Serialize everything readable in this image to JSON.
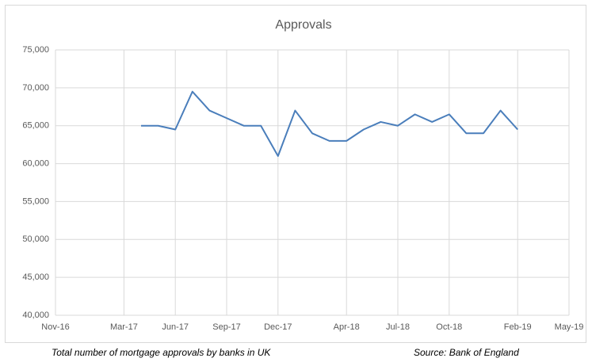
{
  "chart_data": {
    "type": "line",
    "title": "Approvals",
    "x": [
      "2017-04",
      "2017-05",
      "2017-06",
      "2017-07",
      "2017-08",
      "2017-09",
      "2017-10",
      "2017-11",
      "2017-12",
      "2018-01",
      "2018-02",
      "2018-03",
      "2018-04",
      "2018-05",
      "2018-06",
      "2018-07",
      "2018-08",
      "2018-09",
      "2018-10",
      "2018-11",
      "2018-12",
      "2019-01",
      "2019-02"
    ],
    "series": [
      {
        "name": "Approvals",
        "color": "#4a7ebb",
        "values": [
          65000,
          65000,
          64500,
          69500,
          67000,
          66000,
          65000,
          65000,
          61000,
          67000,
          64000,
          63000,
          63000,
          64500,
          65500,
          65000,
          66500,
          65500,
          66500,
          64000,
          64000,
          67000,
          64500
        ]
      }
    ],
    "xlim": [
      "2016-11",
      "2019-05"
    ],
    "xticks": [
      {
        "value": "2016-11",
        "label": "Nov-16"
      },
      {
        "value": "2017-03",
        "label": "Mar-17"
      },
      {
        "value": "2017-06",
        "label": "Jun-17"
      },
      {
        "value": "2017-09",
        "label": "Sep-17"
      },
      {
        "value": "2017-12",
        "label": "Dec-17"
      },
      {
        "value": "2018-04",
        "label": "Apr-18"
      },
      {
        "value": "2018-07",
        "label": "Jul-18"
      },
      {
        "value": "2018-10",
        "label": "Oct-18"
      },
      {
        "value": "2019-02",
        "label": "Feb-19"
      },
      {
        "value": "2019-05",
        "label": "May-19"
      }
    ],
    "ylim": [
      40000,
      75000
    ],
    "yticks": [
      {
        "value": 40000,
        "label": "40,000"
      },
      {
        "value": 45000,
        "label": "45,000"
      },
      {
        "value": 50000,
        "label": "50,000"
      },
      {
        "value": 55000,
        "label": "55,000"
      },
      {
        "value": 60000,
        "label": "60,000"
      },
      {
        "value": 65000,
        "label": "65,000"
      },
      {
        "value": 70000,
        "label": "70,000"
      },
      {
        "value": 75000,
        "label": "75,000"
      }
    ],
    "grid": true,
    "caption": "Total number of mortgage approvals by banks in UK",
    "source": "Source: Bank of England"
  }
}
